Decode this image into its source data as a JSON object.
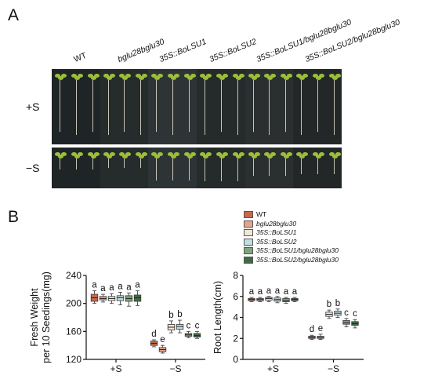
{
  "panels": {
    "a": "A",
    "b": "B"
  },
  "genotypes": [
    "WT",
    "bglu28bglu30",
    "35S::BoLSU1",
    "35S::BoLSU2",
    "35S::BoLSU1/bglu28bglu30",
    "35S::BoLSU2/bglu28bglu30"
  ],
  "conditions": {
    "plus": "+S",
    "minus": "−S"
  },
  "colors": {
    "WT": "#c9674b",
    "bglu28bglu30": "#e4a48e",
    "35S::BoLSU1": "#f3e6d6",
    "35S::BoLSU2": "#c2dfe0",
    "35S::BoLSU1/bglu28bglu30": "#7ea67c",
    "35S::BoLSU2/bglu28bglu30": "#3f6b45"
  },
  "chart_data": [
    {
      "type": "box",
      "ylabel": "Fresh Weight per 10 Seedings(mg)",
      "ylabel_lines": [
        "Fresh Weight",
        "per 10 Seedings(mg)"
      ],
      "ylim": [
        120,
        240
      ],
      "yticks": [
        120,
        160,
        200,
        240
      ],
      "categories": [
        "+S",
        "−S"
      ],
      "series": [
        {
          "name": "WT",
          "medians": [
            208,
            143
          ],
          "q1": [
            203,
            140
          ],
          "q3": [
            213,
            146
          ],
          "min": [
            200,
            138
          ],
          "max": [
            218,
            148
          ],
          "letters": [
            "a",
            "d"
          ]
        },
        {
          "name": "bglu28bglu30",
          "medians": [
            207,
            134
          ],
          "q1": [
            205,
            131
          ],
          "q3": [
            210,
            137
          ],
          "min": [
            202,
            129
          ],
          "max": [
            213,
            140
          ],
          "letters": [
            "a",
            "e"
          ]
        },
        {
          "name": "35S::BoLSU1",
          "medians": [
            207,
            166
          ],
          "q1": [
            204,
            162
          ],
          "q3": [
            210,
            170
          ],
          "min": [
            200,
            158
          ],
          "max": [
            214,
            175
          ],
          "letters": [
            "a",
            "b"
          ]
        },
        {
          "name": "35S::BoLSU2",
          "medians": [
            208,
            167
          ],
          "q1": [
            204,
            163
          ],
          "q3": [
            211,
            170
          ],
          "min": [
            198,
            158
          ],
          "max": [
            216,
            176
          ],
          "letters": [
            "a",
            "b"
          ]
        },
        {
          "name": "35S::BoLSU1/bglu28bglu30",
          "medians": [
            207,
            155
          ],
          "q1": [
            203,
            153
          ],
          "q3": [
            211,
            157
          ],
          "min": [
            196,
            151
          ],
          "max": [
            215,
            160
          ],
          "letters": [
            "a",
            "c"
          ]
        },
        {
          "name": "35S::BoLSU2/bglu28bglu30",
          "medians": [
            208,
            154
          ],
          "q1": [
            203,
            152
          ],
          "q3": [
            212,
            157
          ],
          "min": [
            197,
            150
          ],
          "max": [
            218,
            160
          ],
          "letters": [
            "a",
            "c"
          ]
        }
      ]
    },
    {
      "type": "box",
      "ylabel": "Root Length(cm)",
      "ylim": [
        0,
        8
      ],
      "yticks": [
        0,
        2,
        4,
        6,
        8
      ],
      "categories": [
        "+S",
        "−S"
      ],
      "series": [
        {
          "name": "WT",
          "medians": [
            5.7,
            2.1
          ],
          "q1": [
            5.6,
            2.0
          ],
          "q3": [
            5.8,
            2.2
          ],
          "min": [
            5.5,
            1.9
          ],
          "max": [
            5.9,
            2.3
          ],
          "letters": [
            "a",
            "d"
          ]
        },
        {
          "name": "bglu28bglu30",
          "medians": [
            5.7,
            2.1
          ],
          "q1": [
            5.6,
            2.0
          ],
          "q3": [
            5.8,
            2.2
          ],
          "min": [
            5.5,
            1.9
          ],
          "max": [
            5.9,
            2.4
          ],
          "letters": [
            "a",
            "e"
          ]
        },
        {
          "name": "35S::BoLSU1",
          "medians": [
            5.8,
            4.3
          ],
          "q1": [
            5.65,
            4.1
          ],
          "q3": [
            5.9,
            4.5
          ],
          "min": [
            5.5,
            3.9
          ],
          "max": [
            6.0,
            4.7
          ],
          "letters": [
            "a",
            "b"
          ]
        },
        {
          "name": "35S::BoLSU2",
          "medians": [
            5.7,
            4.4
          ],
          "q1": [
            5.55,
            4.2
          ],
          "q3": [
            5.85,
            4.6
          ],
          "min": [
            5.4,
            4.0
          ],
          "max": [
            6.0,
            4.8
          ],
          "letters": [
            "a",
            "b"
          ]
        },
        {
          "name": "35S::BoLSU1/bglu28bglu30",
          "medians": [
            5.6,
            3.5
          ],
          "q1": [
            5.5,
            3.35
          ],
          "q3": [
            5.8,
            3.7
          ],
          "min": [
            5.35,
            3.1
          ],
          "max": [
            5.9,
            3.9
          ],
          "letters": [
            "a",
            "c"
          ]
        },
        {
          "name": "35S::BoLSU2/bglu28bglu30",
          "medians": [
            5.7,
            3.4
          ],
          "q1": [
            5.6,
            3.25
          ],
          "q3": [
            5.8,
            3.6
          ],
          "min": [
            5.5,
            3.0
          ],
          "max": [
            5.9,
            3.8
          ],
          "letters": [
            "a",
            "c"
          ]
        }
      ]
    }
  ]
}
